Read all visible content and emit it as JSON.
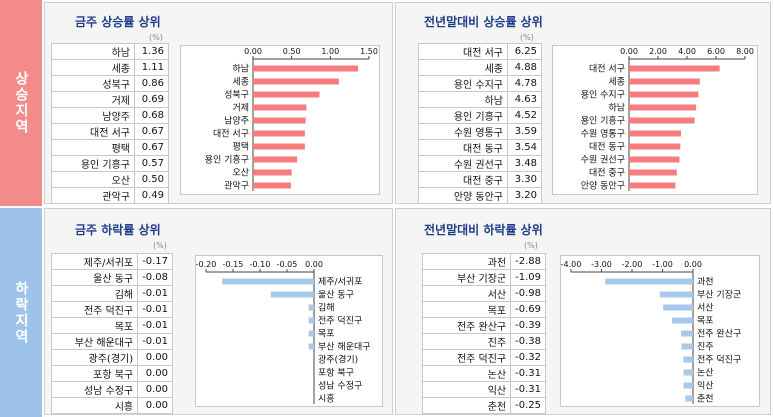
{
  "sections": {
    "rising": {
      "label": "상승지역",
      "color": "#f38b8b"
    },
    "falling": {
      "label": "하락지역",
      "color": "#9ec3ea"
    }
  },
  "unit": "(%)",
  "panels": [
    {
      "id": "p1",
      "title": "금주 상승률 상위",
      "rows": [
        {
          "name": "하남",
          "value": "1.36"
        },
        {
          "name": "세종",
          "value": "1.11"
        },
        {
          "name": "성북구",
          "value": "0.86"
        },
        {
          "name": "거제",
          "value": "0.69"
        },
        {
          "name": "남양주",
          "value": "0.68"
        },
        {
          "name": "대전 서구",
          "value": "0.67"
        },
        {
          "name": "평택",
          "value": "0.67"
        },
        {
          "name": "용인 기흥구",
          "value": "0.57"
        },
        {
          "name": "오산",
          "value": "0.50"
        },
        {
          "name": "관악구",
          "value": "0.49"
        }
      ]
    },
    {
      "id": "p2",
      "title": "전년말대비 상승률 상위",
      "rows": [
        {
          "name": "대전 서구",
          "value": "6.25"
        },
        {
          "name": "세종",
          "value": "4.88"
        },
        {
          "name": "용인 수지구",
          "value": "4.78"
        },
        {
          "name": "하남",
          "value": "4.63"
        },
        {
          "name": "용인 기흥구",
          "value": "4.52"
        },
        {
          "name": "수원 영통구",
          "value": "3.59"
        },
        {
          "name": "대전 동구",
          "value": "3.54"
        },
        {
          "name": "수원 권선구",
          "value": "3.48"
        },
        {
          "name": "대전 중구",
          "value": "3.30"
        },
        {
          "name": "안양 동안구",
          "value": "3.20"
        }
      ]
    },
    {
      "id": "p3",
      "title": "금주 하락률 상위",
      "rows": [
        {
          "name": "제주/서귀포",
          "value": "-0.17"
        },
        {
          "name": "울산 동구",
          "value": "-0.08"
        },
        {
          "name": "김해",
          "value": "-0.01"
        },
        {
          "name": "전주 덕진구",
          "value": "-0.01"
        },
        {
          "name": "목포",
          "value": "-0.01"
        },
        {
          "name": "부산 해운대구",
          "value": "-0.01"
        },
        {
          "name": "광주(경기)",
          "value": "0.00"
        },
        {
          "name": "포항 북구",
          "value": "0.00"
        },
        {
          "name": "성남 수정구",
          "value": "0.00"
        },
        {
          "name": "시흥",
          "value": "0.00"
        }
      ]
    },
    {
      "id": "p4",
      "title": "전년말대비 하락률 상위",
      "rows": [
        {
          "name": "과천",
          "value": "-2.88"
        },
        {
          "name": "부산 기장군",
          "value": "-1.09"
        },
        {
          "name": "서산",
          "value": "-0.98"
        },
        {
          "name": "목포",
          "value": "-0.69"
        },
        {
          "name": "전주 완산구",
          "value": "-0.39"
        },
        {
          "name": "진주",
          "value": "-0.38"
        },
        {
          "name": "전주 덕진구",
          "value": "-0.32"
        },
        {
          "name": "논산",
          "value": "-0.31"
        },
        {
          "name": "익산",
          "value": "-0.31"
        },
        {
          "name": "춘천",
          "value": "-0.25"
        }
      ]
    }
  ],
  "chart_data": [
    {
      "type": "bar",
      "orientation": "horizontal",
      "title": "금주 상승률 상위",
      "categories": [
        "하남",
        "세종",
        "성북구",
        "거제",
        "남양주",
        "대전 서구",
        "평택",
        "용인 기흥구",
        "오산",
        "관악구"
      ],
      "values": [
        1.36,
        1.11,
        0.86,
        0.69,
        0.68,
        0.67,
        0.67,
        0.57,
        0.5,
        0.49
      ],
      "xlim": [
        0,
        1.5
      ],
      "ticks": [
        "0.00",
        "0.50",
        "1.00",
        "1.50"
      ],
      "tick_values": [
        0,
        0.5,
        1.0,
        1.5
      ],
      "label_side": "left",
      "bar_color": "#f47c7c"
    },
    {
      "type": "bar",
      "orientation": "horizontal",
      "title": "전년말대비 상승률 상위",
      "categories": [
        "대전 서구",
        "세종",
        "용인 수지구",
        "하남",
        "용인 기흥구",
        "수원 영통구",
        "대전 동구",
        "수원 권선구",
        "대전 중구",
        "안양 동안구"
      ],
      "values": [
        6.25,
        4.88,
        4.78,
        4.63,
        4.52,
        3.59,
        3.54,
        3.48,
        3.3,
        3.2
      ],
      "xlim": [
        0,
        8
      ],
      "ticks": [
        "0.00",
        "2.00",
        "4.00",
        "6.00",
        "8.00"
      ],
      "tick_values": [
        0,
        2,
        4,
        6,
        8
      ],
      "label_side": "left",
      "bar_color": "#f47c7c"
    },
    {
      "type": "bar",
      "orientation": "horizontal",
      "title": "금주 하락률 상위",
      "categories": [
        "제주/서귀포",
        "울산 동구",
        "김해",
        "전주 덕진구",
        "목포",
        "부산 해운대구",
        "광주(경기)",
        "포항 북구",
        "성남 수정구",
        "시흥"
      ],
      "values": [
        -0.17,
        -0.08,
        -0.01,
        -0.01,
        -0.01,
        -0.01,
        0.0,
        0.0,
        0.0,
        0.0
      ],
      "xlim": [
        -0.2,
        0
      ],
      "ticks": [
        "-0.20",
        "-0.15",
        "-0.10",
        "-0.05",
        "0.00"
      ],
      "tick_values": [
        -0.2,
        -0.15,
        -0.1,
        -0.05,
        0
      ],
      "label_side": "right",
      "bar_color": "#a9c9ec"
    },
    {
      "type": "bar",
      "orientation": "horizontal",
      "title": "전년말대비 하락률 상위",
      "categories": [
        "과천",
        "부산 기장군",
        "서산",
        "목포",
        "전주 완산구",
        "진주",
        "전주 덕진구",
        "논산",
        "익산",
        "춘천"
      ],
      "values": [
        -2.88,
        -1.09,
        -0.98,
        -0.69,
        -0.39,
        -0.38,
        -0.32,
        -0.31,
        -0.31,
        -0.25
      ],
      "xlim": [
        -4,
        0
      ],
      "ticks": [
        "-4.00",
        "-3.00",
        "-2.00",
        "-1.00",
        "0.00"
      ],
      "tick_values": [
        -4,
        -3,
        -2,
        -1,
        0
      ],
      "label_side": "right",
      "bar_color": "#a9c9ec"
    }
  ]
}
